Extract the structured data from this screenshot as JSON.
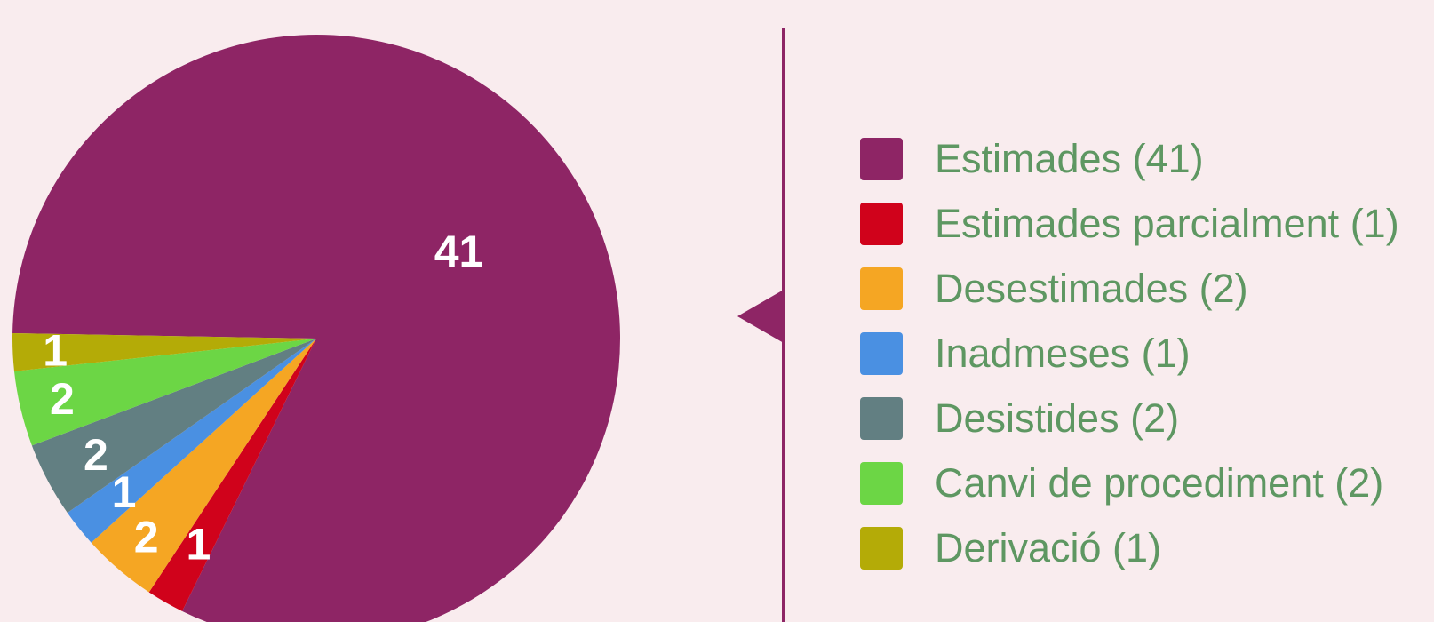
{
  "chart_data": {
    "type": "pie",
    "slices": [
      {
        "label": "Estimades (41)",
        "value": 41,
        "color": "#8e2565"
      },
      {
        "label": "Estimades parcialment (1)",
        "value": 1,
        "color": "#d0021b"
      },
      {
        "label": "Desestimades (2)",
        "value": 2,
        "color": "#f5a623"
      },
      {
        "label": "Inadmeses (1)",
        "value": 1,
        "color": "#4a90e2"
      },
      {
        "label": "Desistides (2)",
        "value": 2,
        "color": "#627f82"
      },
      {
        "label": "Canvi de procediment (2)",
        "value": 2,
        "color": "#6cd645"
      },
      {
        "label": "Derivació (1)",
        "value": 1,
        "color": "#b4ab07"
      }
    ],
    "legend_position": "right"
  },
  "colors": {
    "background": "#f9ecee",
    "divider": "#8e2565",
    "legend_text": "#5e9762"
  }
}
